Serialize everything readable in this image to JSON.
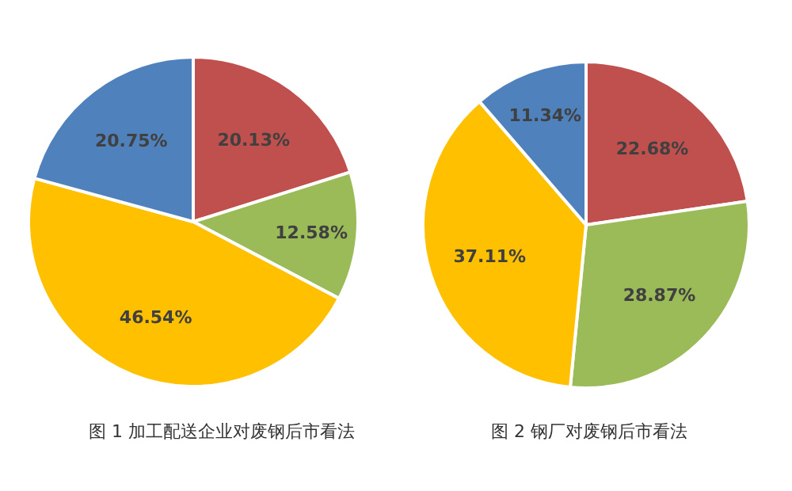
{
  "chart_data": [
    {
      "type": "pie",
      "title": "图 1 加工配送企业对废钢后市看法",
      "categories": [
        null,
        null,
        null,
        null
      ],
      "values": [
        20.13,
        12.58,
        46.54,
        20.75
      ],
      "colors": [
        "#c0504d",
        "#9bbb59",
        "#ffc000",
        "#4f81bd"
      ],
      "value_labels": [
        "20.13%",
        "12.58%",
        "46.54%",
        "20.75%"
      ]
    },
    {
      "type": "pie",
      "title": "图 2 钢厂对废钢后市看法",
      "categories": [
        null,
        null,
        null,
        null
      ],
      "values": [
        22.68,
        28.87,
        37.11,
        11.34
      ],
      "colors": [
        "#c0504d",
        "#9bbb59",
        "#ffc000",
        "#4f81bd"
      ],
      "value_labels": [
        "22.68%",
        "28.87%",
        "37.11%",
        "11.34%"
      ]
    }
  ]
}
